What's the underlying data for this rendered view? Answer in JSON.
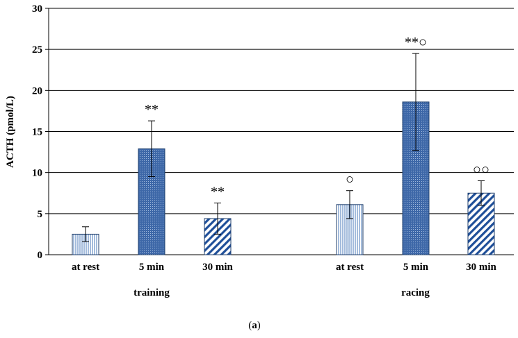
{
  "chart_data": {
    "type": "bar",
    "title": "",
    "xlabel": "",
    "ylabel": "ACTH (pmol/L)",
    "ylim": [
      0,
      30
    ],
    "yticks": [
      0,
      5,
      10,
      15,
      20,
      25,
      30
    ],
    "grid": true,
    "caption": {
      "prefix": "(",
      "letter": "a",
      "suffix": ")"
    },
    "groups": [
      "training",
      "racing"
    ],
    "categories": [
      "at rest",
      "5 min",
      "30 min"
    ],
    "bars": [
      {
        "group": "training",
        "category": "at rest",
        "value": 2.5,
        "error": 0.9,
        "pattern": "vertical",
        "sig": ""
      },
      {
        "group": "training",
        "category": "5 min",
        "value": 12.9,
        "error": 3.4,
        "pattern": "dots",
        "sig": "**"
      },
      {
        "group": "training",
        "category": "30 min",
        "value": 4.4,
        "error": 1.9,
        "pattern": "diagonal",
        "sig": "**"
      },
      {
        "group": "racing",
        "category": "at rest",
        "value": 6.1,
        "error": 1.7,
        "pattern": "vertical",
        "sig": "○"
      },
      {
        "group": "racing",
        "category": "5 min",
        "value": 18.6,
        "error": 5.9,
        "pattern": "dots",
        "sig": "**○"
      },
      {
        "group": "racing",
        "category": "30 min",
        "value": 7.5,
        "error": 1.5,
        "pattern": "diagonal",
        "sig": "○○"
      }
    ],
    "colors": {
      "bar_stroke": "#1f3f6e",
      "fill_blue": "#3e68a8",
      "fill_light": "#ffffff",
      "grid": "#000000"
    }
  }
}
